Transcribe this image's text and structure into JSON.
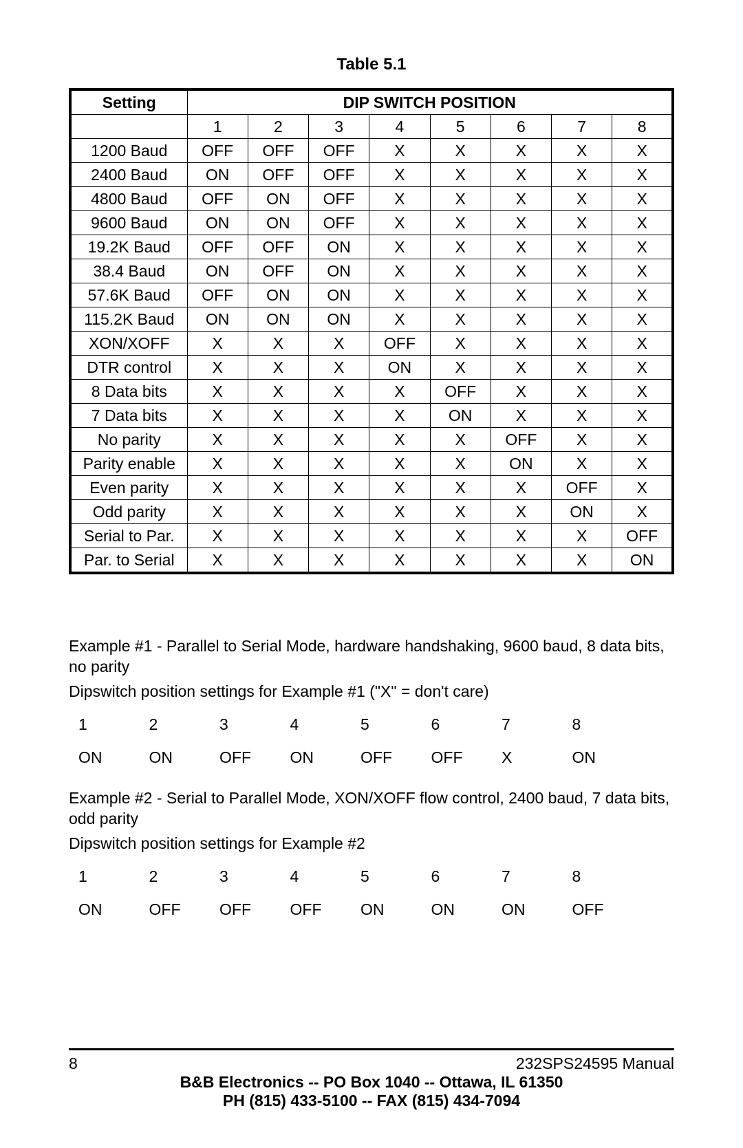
{
  "table": {
    "title": "Table 5.1",
    "header_setting": "Setting",
    "header_dip": "DIP SWITCH POSITION",
    "position_numbers": [
      "1",
      "2",
      "3",
      "4",
      "5",
      "6",
      "7",
      "8"
    ],
    "rows": [
      {
        "setting": "1200 Baud",
        "cells": [
          "OFF",
          "OFF",
          "OFF",
          "X",
          "X",
          "X",
          "X",
          "X"
        ]
      },
      {
        "setting": "2400 Baud",
        "cells": [
          "ON",
          "OFF",
          "OFF",
          "X",
          "X",
          "X",
          "X",
          "X"
        ]
      },
      {
        "setting": "4800 Baud",
        "cells": [
          "OFF",
          "ON",
          "OFF",
          "X",
          "X",
          "X",
          "X",
          "X"
        ]
      },
      {
        "setting": "9600 Baud",
        "cells": [
          "ON",
          "ON",
          "OFF",
          "X",
          "X",
          "X",
          "X",
          "X"
        ]
      },
      {
        "setting": "19.2K Baud",
        "cells": [
          "OFF",
          "OFF",
          "ON",
          "X",
          "X",
          "X",
          "X",
          "X"
        ]
      },
      {
        "setting": "38.4 Baud",
        "cells": [
          "ON",
          "OFF",
          "ON",
          "X",
          "X",
          "X",
          "X",
          "X"
        ]
      },
      {
        "setting": "57.6K Baud",
        "cells": [
          "OFF",
          "ON",
          "ON",
          "X",
          "X",
          "X",
          "X",
          "X"
        ]
      },
      {
        "setting": "115.2K Baud",
        "cells": [
          "ON",
          "ON",
          "ON",
          "X",
          "X",
          "X",
          "X",
          "X"
        ]
      },
      {
        "setting": "XON/XOFF",
        "cells": [
          "X",
          "X",
          "X",
          "OFF",
          "X",
          "X",
          "X",
          "X"
        ]
      },
      {
        "setting": "DTR control",
        "cells": [
          "X",
          "X",
          "X",
          "ON",
          "X",
          "X",
          "X",
          "X"
        ]
      },
      {
        "setting": "8 Data bits",
        "cells": [
          "X",
          "X",
          "X",
          "X",
          "OFF",
          "X",
          "X",
          "X"
        ]
      },
      {
        "setting": "7 Data bits",
        "cells": [
          "X",
          "X",
          "X",
          "X",
          "ON",
          "X",
          "X",
          "X"
        ]
      },
      {
        "setting": "No parity",
        "cells": [
          "X",
          "X",
          "X",
          "X",
          "X",
          "OFF",
          "X",
          "X"
        ]
      },
      {
        "setting": "Parity enable",
        "cells": [
          "X",
          "X",
          "X",
          "X",
          "X",
          "ON",
          "X",
          "X"
        ]
      },
      {
        "setting": "Even parity",
        "cells": [
          "X",
          "X",
          "X",
          "X",
          "X",
          "X",
          "OFF",
          "X"
        ]
      },
      {
        "setting": "Odd parity",
        "cells": [
          "X",
          "X",
          "X",
          "X",
          "X",
          "X",
          "ON",
          "X"
        ]
      },
      {
        "setting": "Serial to Par.",
        "cells": [
          "X",
          "X",
          "X",
          "X",
          "X",
          "X",
          "X",
          "OFF"
        ]
      },
      {
        "setting": "Par. to Serial",
        "cells": [
          "X",
          "X",
          "X",
          "X",
          "X",
          "X",
          "X",
          "ON"
        ]
      }
    ]
  },
  "example1": {
    "p1": "Example #1 - Parallel to Serial Mode, hardware handshaking, 9600 baud, 8 data bits, no parity",
    "p2": "Dipswitch position settings for Example #1 (\"X\" = don't care)",
    "numbers": [
      "1",
      "2",
      "3",
      "4",
      "5",
      "6",
      "7",
      "8"
    ],
    "values": [
      "ON",
      "ON",
      "OFF",
      "ON",
      "OFF",
      "OFF",
      "X",
      "ON"
    ]
  },
  "example2": {
    "p1": "Example #2 - Serial to Parallel Mode, XON/XOFF flow control, 2400 baud, 7 data bits, odd parity",
    "p2": "Dipswitch position settings for Example #2",
    "numbers": [
      "1",
      "2",
      "3",
      "4",
      "5",
      "6",
      "7",
      "8"
    ],
    "values": [
      "ON",
      "OFF",
      "OFF",
      "OFF",
      "ON",
      "ON",
      "ON",
      "OFF"
    ]
  },
  "footer": {
    "page_number": "8",
    "manual_ref": "232SPS24595 Manual",
    "line2": "B&B Electronics  --  PO Box 1040  --  Ottawa, IL  61350",
    "line3": "PH (815) 433-5100  --  FAX (815) 434-7094"
  }
}
